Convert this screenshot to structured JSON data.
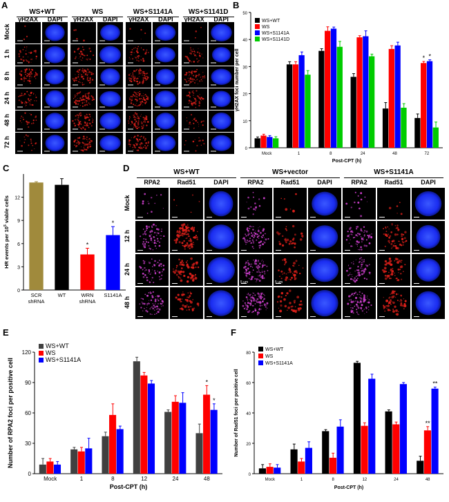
{
  "panels": {
    "A": {
      "label": "A",
      "groups": [
        "WS+WT",
        "WS",
        "WS+S1141A",
        "WS+S1141D"
      ],
      "channels": [
        "γH2AX",
        "DAPI"
      ],
      "rows": [
        "Mock",
        "1 h",
        "8 h",
        "24 h",
        "48 h",
        "72 h"
      ]
    },
    "D": {
      "label": "D",
      "groups": [
        "WS+WT",
        "WS+vector",
        "WS+S1141A"
      ],
      "channels": [
        "RPA2",
        "Rad51",
        "DAPI"
      ],
      "rows": [
        "Mock",
        "12 h",
        "24 h",
        "48 h"
      ],
      "scale_labels": [
        "5 um",
        "5 um"
      ]
    }
  },
  "colors": {
    "gamma_h2ax": "#e0201a",
    "dapi": "#1a2cf0",
    "rpa2": "#d040d0",
    "rad51": "#e0201a",
    "black": "#000000",
    "red": "#ff0000",
    "blue": "#0000ff",
    "green": "#00cc00",
    "olive": "#a08a3c",
    "darkgray": "#404040"
  },
  "chart_data": [
    {
      "id": "B",
      "panel_label": "B",
      "type": "bar",
      "title": "",
      "xlabel": "Post-CPT (h)",
      "ylabel": "γH2AX foci number per cell",
      "categories": [
        "Mock",
        "1",
        "8",
        "24",
        "48",
        "72"
      ],
      "ylim": [
        0,
        50
      ],
      "yticks": [
        0,
        10,
        20,
        30,
        40,
        50
      ],
      "legend_position": "top-left",
      "series": [
        {
          "name": "WS+WT",
          "color": "#000000",
          "values": [
            3.5,
            30.8,
            35.8,
            26.2,
            14.5,
            11
          ],
          "errors": [
            0.5,
            1,
            0.8,
            1.2,
            2.2,
            1.5
          ]
        },
        {
          "name": "WS",
          "color": "#ff0000",
          "values": [
            4.5,
            30.8,
            43.2,
            40.8,
            36.5,
            31.3
          ],
          "errors": [
            0.5,
            1,
            1.5,
            0.6,
            1.2,
            0.6
          ]
        },
        {
          "name": "WS+S1141A",
          "color": "#0000ff",
          "values": [
            4,
            34.2,
            44,
            41.2,
            37.8,
            32
          ],
          "errors": [
            0.5,
            1.2,
            0.6,
            2,
            1.2,
            0.5
          ]
        },
        {
          "name": "WS+S1141D",
          "color": "#00cc00",
          "values": [
            3.5,
            27,
            37.3,
            33.8,
            14.8,
            7.5
          ],
          "errors": [
            0.6,
            1.5,
            2,
            0.8,
            1.5,
            2
          ]
        }
      ],
      "annotations": [
        {
          "category": "72",
          "series": "WS",
          "text": "*"
        },
        {
          "category": "72",
          "series": "WS+S1141A",
          "text": "*"
        }
      ]
    },
    {
      "id": "C",
      "panel_label": "C",
      "type": "bar",
      "title": "",
      "xlabel": "",
      "ylabel": "HR events per 10",
      "ylabel_sup": "5",
      "ylabel_tail": " viable cells",
      "categories": [
        "SCR shRNA",
        "WT",
        "WRN shRNA",
        "S1141A"
      ],
      "ylim": [
        0,
        15
      ],
      "yticks": [
        0,
        3,
        6,
        9,
        12
      ],
      "series": [
        {
          "name": "HR",
          "values": [
            13.9,
            13.6,
            4.6,
            7.1
          ],
          "errors": [
            0.1,
            0.8,
            0.8,
            1.1
          ],
          "colors": [
            "#a08a3c",
            "#000000",
            "#ff0000",
            "#0000ff"
          ]
        }
      ],
      "annotations": [
        {
          "category": "WRN shRNA",
          "text": "*"
        },
        {
          "category": "S1141A",
          "text": "*"
        }
      ]
    },
    {
      "id": "E",
      "panel_label": "E",
      "type": "bar",
      "title": "",
      "xlabel": "Post-CPT (h)",
      "ylabel": "Number of RPA2 foci per positive cell",
      "categories": [
        "Mock",
        "1",
        "8",
        "12",
        "24",
        "48"
      ],
      "ylim": [
        0,
        120
      ],
      "yticks": [
        0,
        30,
        60,
        90,
        120
      ],
      "legend_position": "top-left",
      "series": [
        {
          "name": "WS+WT",
          "color": "#404040",
          "values": [
            9,
            24,
            37,
            111,
            61,
            40
          ],
          "errors": [
            6,
            2,
            4,
            4,
            2,
            9
          ]
        },
        {
          "name": "WS",
          "color": "#ff0000",
          "values": [
            12,
            22,
            58,
            97,
            71,
            78
          ],
          "errors": [
            3,
            4,
            11,
            3,
            6,
            9
          ]
        },
        {
          "name": "WS+S1141A",
          "color": "#0000ff",
          "values": [
            9,
            25,
            44,
            89,
            70,
            63
          ],
          "errors": [
            3,
            10,
            3,
            3,
            10,
            6
          ]
        }
      ],
      "annotations": [
        {
          "category": "48",
          "series": "WS",
          "text": "*"
        },
        {
          "category": "48",
          "series": "WS+S1141A",
          "text": "*"
        }
      ]
    },
    {
      "id": "F",
      "panel_label": "F",
      "type": "bar",
      "title": "",
      "xlabel": "Post-CPT (h)",
      "ylabel": "Number of Rad51 foci per positive cell",
      "categories": [
        "Mock",
        "1",
        "8",
        "12",
        "24",
        "48"
      ],
      "ylim": [
        0,
        80
      ],
      "yticks": [
        0,
        20,
        40,
        60,
        80
      ],
      "legend_position": "top-left",
      "series": [
        {
          "name": "WS+WT",
          "color": "#000000",
          "values": [
            3.5,
            16,
            28,
            73,
            41,
            8.5
          ],
          "errors": [
            2.5,
            3.5,
            1,
            1,
            1,
            3
          ]
        },
        {
          "name": "WS",
          "color": "#ff0000",
          "values": [
            4.5,
            8,
            10.5,
            31.5,
            32.5,
            28.5
          ],
          "errors": [
            2,
            2,
            3,
            2,
            1.5,
            2.5
          ]
        },
        {
          "name": "WS+S1141A",
          "color": "#0000ff",
          "values": [
            4,
            17,
            31,
            62.5,
            59,
            56
          ],
          "errors": [
            2,
            4,
            4.5,
            3,
            1,
            1
          ]
        }
      ],
      "annotations": [
        {
          "category": "48",
          "series": "WS",
          "text": "**"
        },
        {
          "category": "48",
          "series": "WS+S1141A",
          "text": "**"
        }
      ]
    }
  ]
}
